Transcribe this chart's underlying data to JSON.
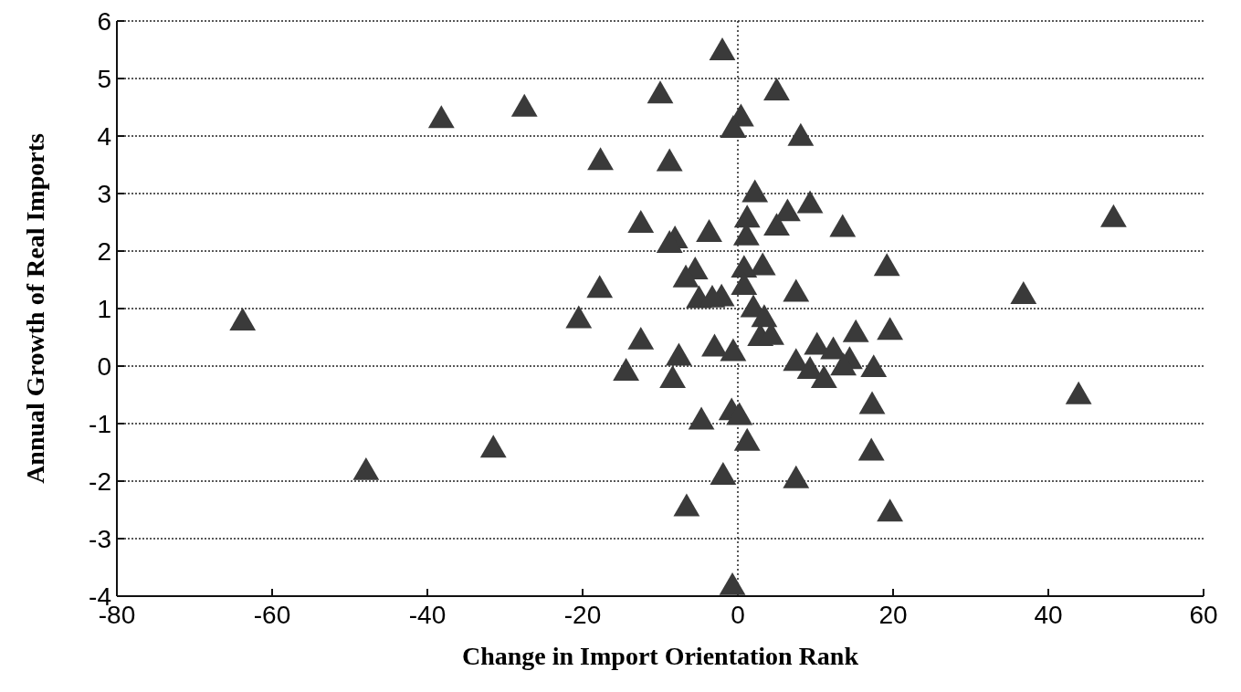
{
  "chart_data": {
    "type": "scatter",
    "xlabel": "Change in Import Orientation Rank",
    "ylabel": "Annual Growth of Real Imports",
    "xlim": [
      -80,
      60
    ],
    "xticks": [
      -80,
      -60,
      -40,
      -20,
      0,
      20,
      40,
      60
    ],
    "ylim": [
      -4,
      6
    ],
    "yticks": [
      -4,
      -3,
      -2,
      -1,
      0,
      1,
      2,
      3,
      4,
      5,
      6
    ],
    "grid": "y",
    "marker": "triangle",
    "ref_lines": [
      {
        "axis": "x",
        "value": 0,
        "line_style": "dotted"
      }
    ],
    "series": [
      {
        "color": "#3a3a3a",
        "x": [
          -2,
          5,
          -10,
          -27.5,
          -38.2,
          0.4,
          -0.6,
          8.1,
          -17.7,
          -8.8,
          2.2,
          9.3,
          6.4,
          -12.5,
          1.2,
          48.4,
          13.5,
          5,
          -3.7,
          -8.1,
          1.1,
          -8.8,
          19.2,
          -5.5,
          3.2,
          0.8,
          -6.7,
          -17.8,
          0.8,
          7.5,
          36.8,
          -5,
          -2.1,
          -3.3,
          2,
          3.4,
          -63.8,
          -20.5,
          -12.5,
          15.2,
          19.6,
          2.9,
          4.3,
          10.2,
          -3,
          12.3,
          -0.6,
          -7.6,
          14.4,
          7.5,
          13.6,
          17.5,
          9.3,
          -14.4,
          11.1,
          -8.4,
          43.9,
          17.3,
          -0.8,
          0.2,
          -4.7,
          -31.5,
          1.2,
          17.2,
          -47.9,
          -1.9,
          7.5,
          -6.6,
          19.6,
          -0.7
        ],
        "values": [
          5.45,
          4.75,
          4.7,
          4.47,
          4.27,
          4.3,
          4.1,
          3.96,
          3.54,
          3.52,
          2.98,
          2.79,
          2.65,
          2.45,
          2.54,
          2.55,
          2.38,
          2.4,
          2.29,
          2.18,
          2.23,
          2.1,
          1.7,
          1.64,
          1.71,
          1.67,
          1.5,
          1.32,
          1.37,
          1.25,
          1.21,
          1.14,
          1.17,
          1.15,
          0.98,
          0.81,
          0.75,
          0.79,
          0.42,
          0.55,
          0.59,
          0.48,
          0.5,
          0.33,
          0.3,
          0.25,
          0.22,
          0.14,
          0.08,
          0.05,
          -0.03,
          -0.06,
          -0.09,
          -0.12,
          -0.25,
          -0.25,
          -0.53,
          -0.7,
          -0.81,
          -0.89,
          -0.97,
          -1.46,
          -1.34,
          -1.51,
          -1.85,
          -1.93,
          -1.99,
          -2.48,
          -2.57,
          -3.85
        ]
      }
    ]
  }
}
